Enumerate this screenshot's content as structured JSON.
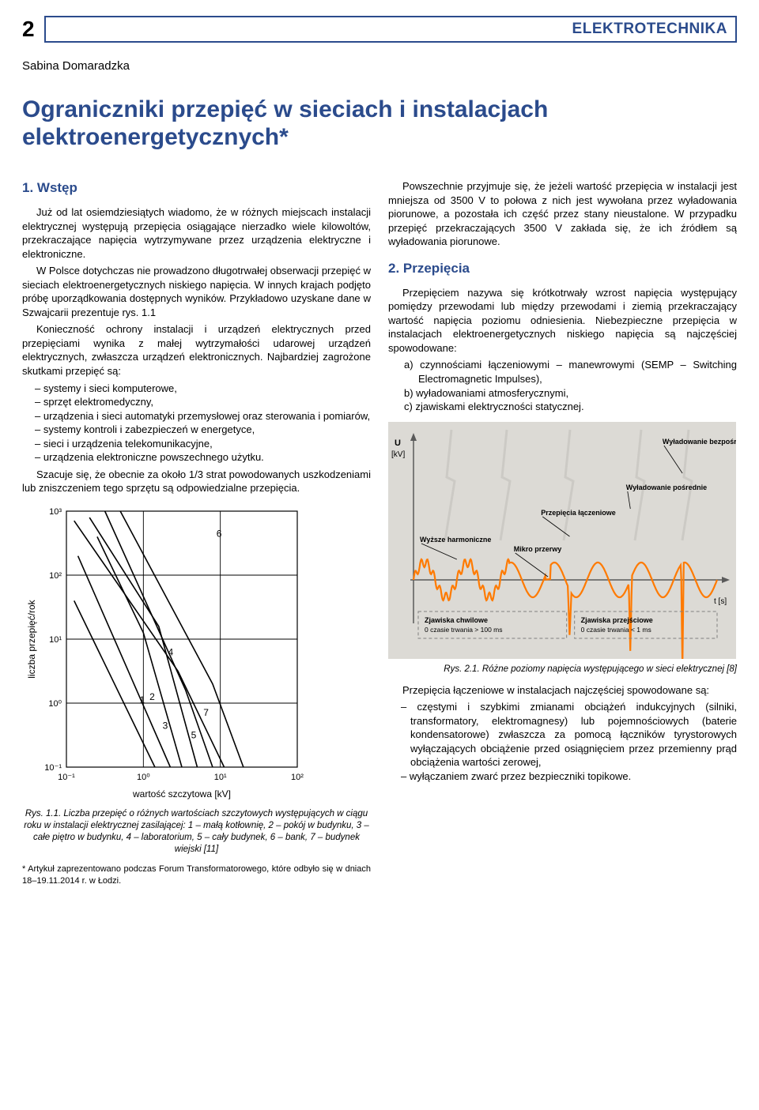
{
  "page_number": "2",
  "section_title": "ELEKTROTECHNIKA",
  "author": "Sabina Domaradzka",
  "article_title": "Ograniczniki przepięć w sieciach i instalacjach elektroenergetycznych*",
  "col1": {
    "h_intro": "1. Wstęp",
    "p1": "Już od lat osiemdziesiątych wiadomo, że w różnych miejscach instalacji elektrycznej występują przepięcia osiągające nierzadko wiele kilowoltów, przekraczające napięcia wytrzymywane przez urządzenia elektryczne i elektroniczne.",
    "p2": "W Polsce dotychczas nie prowadzono długotrwałej obserwacji przepięć w sieciach elektroenergetycznych niskiego napięcia. W innych krajach podjęto próbę uporządkowania dostępnych wyników. Przykładowo uzyskane dane w Szwajcarii prezentuje rys. 1.1",
    "p3": "Konieczność ochrony instalacji i urządzeń elektrycznych przed przepięciami wynika z małej wytrzymałości udarowej urządzeń elektrycznych, zwłaszcza urządzeń elektronicznych. Najbardziej zagrożone skutkami przepięć są:",
    "list1": [
      "systemy i sieci komputerowe,",
      "sprzęt elektromedyczny,",
      "urządzenia i sieci automatyki przemysłowej oraz sterowania i pomiarów,",
      "systemy kontroli i zabezpieczeń w energetyce,",
      "sieci i urządzenia telekomunikacyjne,",
      "urządzenia elektroniczne powszechnego użytku."
    ],
    "p4": "Szacuje się, że obecnie za około 1/3 strat powodowanych uszkodzeniami lub zniszczeniem tego sprzętu są odpowiedzialne przepięcia.",
    "fig1_caption": "Rys. 1.1. Liczba przepięć o różnych wartościach szczytowych występujących w ciągu roku w instalacji elektrycznej zasilającej: 1 – małą kotłownię, 2 – pokój w budynku, 3 – całe piętro w budynku, 4 – laboratorium, 5 – cały budynek, 6 – bank, 7 – budynek wiejski [11]",
    "footnote": "* Artykuł zaprezentowano podczas Forum Transformatorowego, które odbyło się w dniach 18–19.11.2014 r. w Łodzi."
  },
  "col2": {
    "p1": "Powszechnie przyjmuje się, że jeżeli wartość przepięcia w instalacji jest mniejsza od 3500 V to połowa z nich jest wywołana przez wyładowania piorunowe, a pozostała ich część przez stany nieustalone. W przypadku przepięć przekraczających 3500 V zakłada się, że ich źródłem są wyładowania piorunowe.",
    "h_surges": "2. Przepięcia",
    "p2": "Przepięciem nazywa się krótkotrwały wzrost napięcia występujący pomiędzy przewodami lub między przewodami i ziemią przekraczający wartość napięcia poziomu odniesienia. Niebezpieczne przepięcia w instalacjach elektroenergetycznych niskiego napięcia są najczęściej spowodowane:",
    "list2": [
      "a)  czynnościami łączeniowymi – manewrowymi (SEMP – Switching Electromagnetic Impulses),",
      "b)  wyładowaniami atmosferycznymi,",
      "c)  zjawiskami elektryczności statycznej."
    ],
    "fig2_caption": "Rys. 2.1. Różne poziomy napięcia występującego w sieci elektrycznej [8]",
    "p3": "Przepięcia łączeniowe w instalacjach najczęściej spowodowane są:",
    "list3": [
      "częstymi i szybkimi zmianami obciążeń indukcyjnych (silniki, transformatory, elektromagnesy) lub pojemnościowych (baterie kondensatorowe) zwłaszcza za pomocą łączników tyrystorowych wyłączających obciążenie przed osiągnięciem przez przemienny prąd obciążenia wartości zerowej,",
      "wyłączaniem zwarć przez bezpieczniki topikowe."
    ]
  },
  "fig1": {
    "type": "log-log-line",
    "x_label": "wartość szczytowa [kV]",
    "y_label": "liczba przepięć/rok",
    "x_ticks": [
      "10⁻¹",
      "10⁰",
      "10¹",
      "10²"
    ],
    "y_ticks": [
      "10⁻¹",
      "10⁰",
      "10¹",
      "10²",
      "10³"
    ],
    "xlim": [
      -1,
      2
    ],
    "ylim": [
      -1,
      3
    ],
    "grid_color": "#000000",
    "line_color": "#000000",
    "line_width": 1.6,
    "background_color": "#ffffff",
    "label_fontsize": 12,
    "tick_fontsize": 11,
    "series": [
      {
        "label": "1",
        "points": [
          [
            -0.9,
            1.6
          ],
          [
            0.15,
            -1.0
          ]
        ]
      },
      {
        "label": "2",
        "points": [
          [
            -0.85,
            2.3
          ],
          [
            0.35,
            -1.0
          ]
        ]
      },
      {
        "label": "3",
        "points": [
          [
            -0.6,
            2.6
          ],
          [
            0.0,
            1.1
          ],
          [
            0.5,
            -1.0
          ]
        ]
      },
      {
        "label": "4",
        "points": [
          [
            -0.7,
            2.9
          ],
          [
            0.2,
            1.2
          ],
          [
            0.7,
            -1.0
          ]
        ]
      },
      {
        "label": "5",
        "points": [
          [
            -0.5,
            3.0
          ],
          [
            0.55,
            0.2
          ],
          [
            0.9,
            -1.0
          ]
        ]
      },
      {
        "label": "6",
        "points": [
          [
            -0.3,
            3.0
          ],
          [
            0.9,
            0.3
          ],
          [
            1.3,
            -1.0
          ]
        ]
      },
      {
        "label": "7",
        "points": [
          [
            -0.9,
            2.85
          ],
          [
            0.45,
            0.5
          ],
          [
            1.05,
            -1.0
          ]
        ]
      }
    ],
    "series_label_positions": {
      "1": [
        -0.05,
        0.0
      ],
      "2": [
        0.08,
        0.05
      ],
      "3": [
        0.25,
        -0.4
      ],
      "4": [
        0.32,
        0.75
      ],
      "5": [
        0.62,
        -0.55
      ],
      "6": [
        0.95,
        2.6
      ],
      "7": [
        0.78,
        -0.2
      ]
    }
  },
  "fig2": {
    "type": "waveform-illustration",
    "background_color": "#dcdad5",
    "axis_color": "#5a5a5a",
    "wave_color": "#ff7a00",
    "y_label": "U [kV]",
    "x_label": "t [s]",
    "annotations": {
      "top_right": "Wyładowanie bezpośrednie",
      "mid_right": "Wyładowanie pośrednie",
      "mid_center": "Przepięcia łączeniowe",
      "left_wave": "Wyższe harmoniczne",
      "center_wave": "Mikro przerwy",
      "bottom_left_box": "Zjawiska chwilowe\n0 czasie trwania > 100 ms",
      "bottom_right_box": "Zjawiska przejściowe\n0 czasie trwania < 1 ms"
    },
    "wave": {
      "base_amplitude": 22,
      "periods": 7,
      "harmonic_region": [
        0,
        2.2
      ],
      "micro_gap_at": 3.1,
      "switching_spike_at": 3.6,
      "switching_spike_height": 60,
      "indirect_spike_at": 5.0,
      "indirect_spike_height": 95,
      "direct_spike_at": 6.2,
      "direct_spike_height": 140
    },
    "annotation_fontsize": 9,
    "line_width": 2.2
  },
  "colors": {
    "brand_blue": "#2b4b8c",
    "text": "#000000",
    "orange": "#ff7a00",
    "fig2_bg": "#dcdad5"
  }
}
